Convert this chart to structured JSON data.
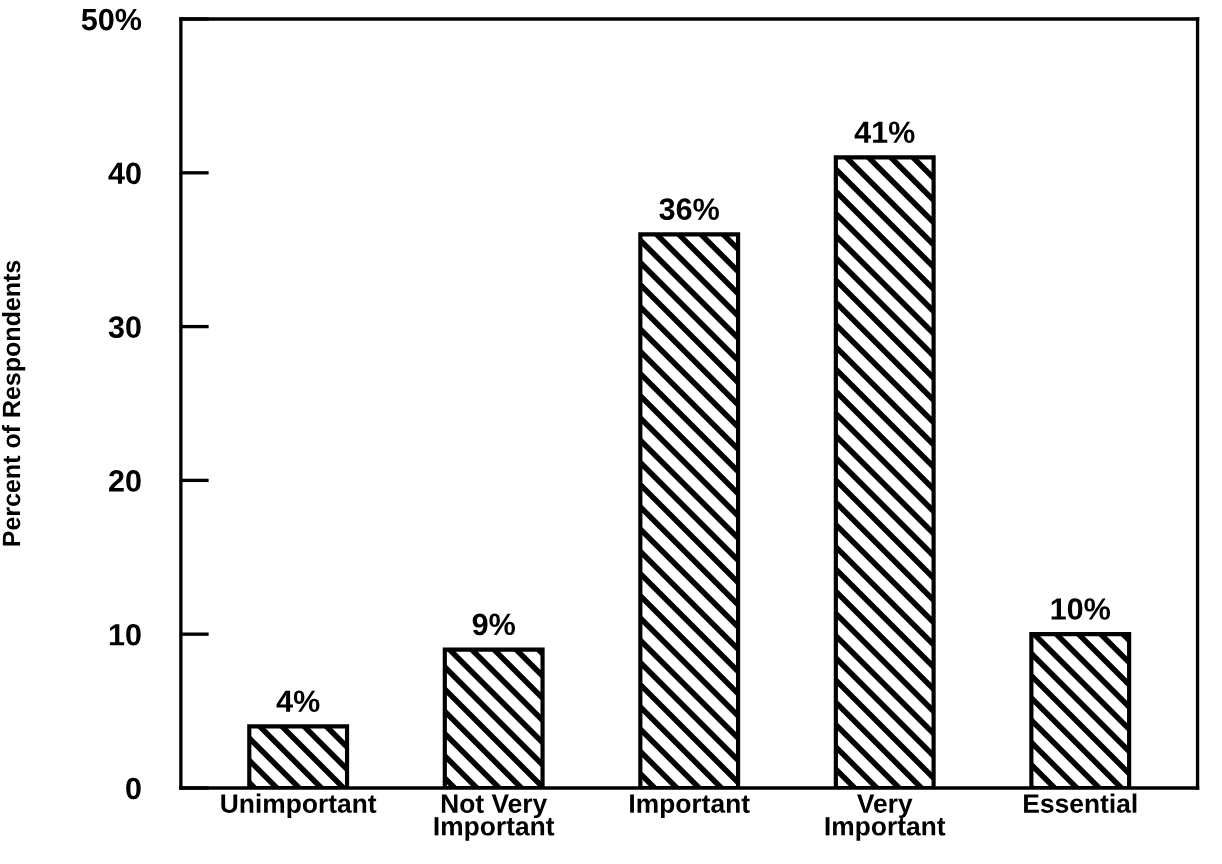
{
  "chart_data": {
    "type": "bar",
    "ylabel": "Percent of Respondents",
    "categories": [
      "Unimportant",
      "Not Very\nImportant",
      "Important",
      "Very\nImportant",
      "Essential"
    ],
    "values": [
      4,
      9,
      36,
      41,
      10
    ],
    "value_labels": [
      "4%",
      "9%",
      "36%",
      "41%",
      "10%"
    ],
    "color": "#000000",
    "ylim": [
      0,
      50
    ],
    "yticks": [
      0,
      10,
      20,
      30,
      40,
      {
        "value": 50,
        "label": "50%"
      }
    ],
    "grid": false
  }
}
